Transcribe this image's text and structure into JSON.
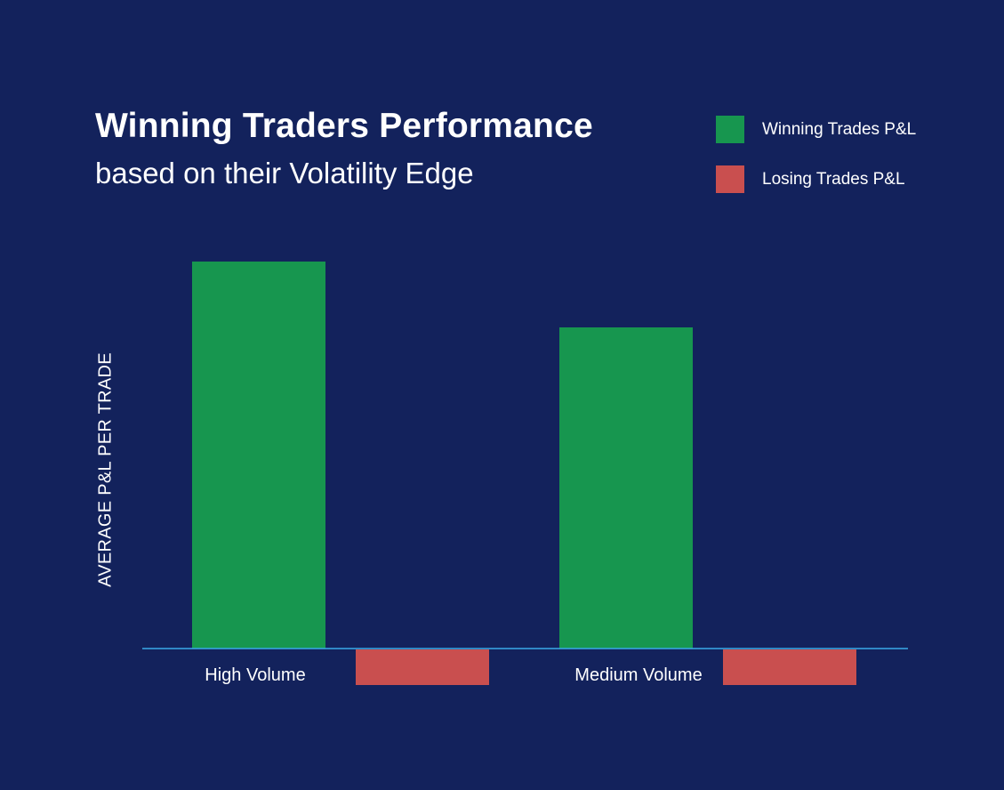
{
  "chart_data": {
    "type": "bar",
    "title": "Winning Traders Performance",
    "subtitle": "based on their Volatility Edge",
    "xlabel": "",
    "ylabel": "AVERAGE P&L PER TRADE",
    "categories": [
      "High Volume",
      "Medium Volume"
    ],
    "series": [
      {
        "name": "Winning Trades P&L",
        "color": "#17964f",
        "values": [
          435,
          361
        ]
      },
      {
        "name": "Losing Trades P&L",
        "color": "#c94f4f",
        "values": [
          -40,
          -40
        ]
      }
    ],
    "ylim": [
      -60,
      450
    ],
    "grid": false,
    "legend_position": "top-right",
    "axis_line_color": "#3aa9e8"
  }
}
